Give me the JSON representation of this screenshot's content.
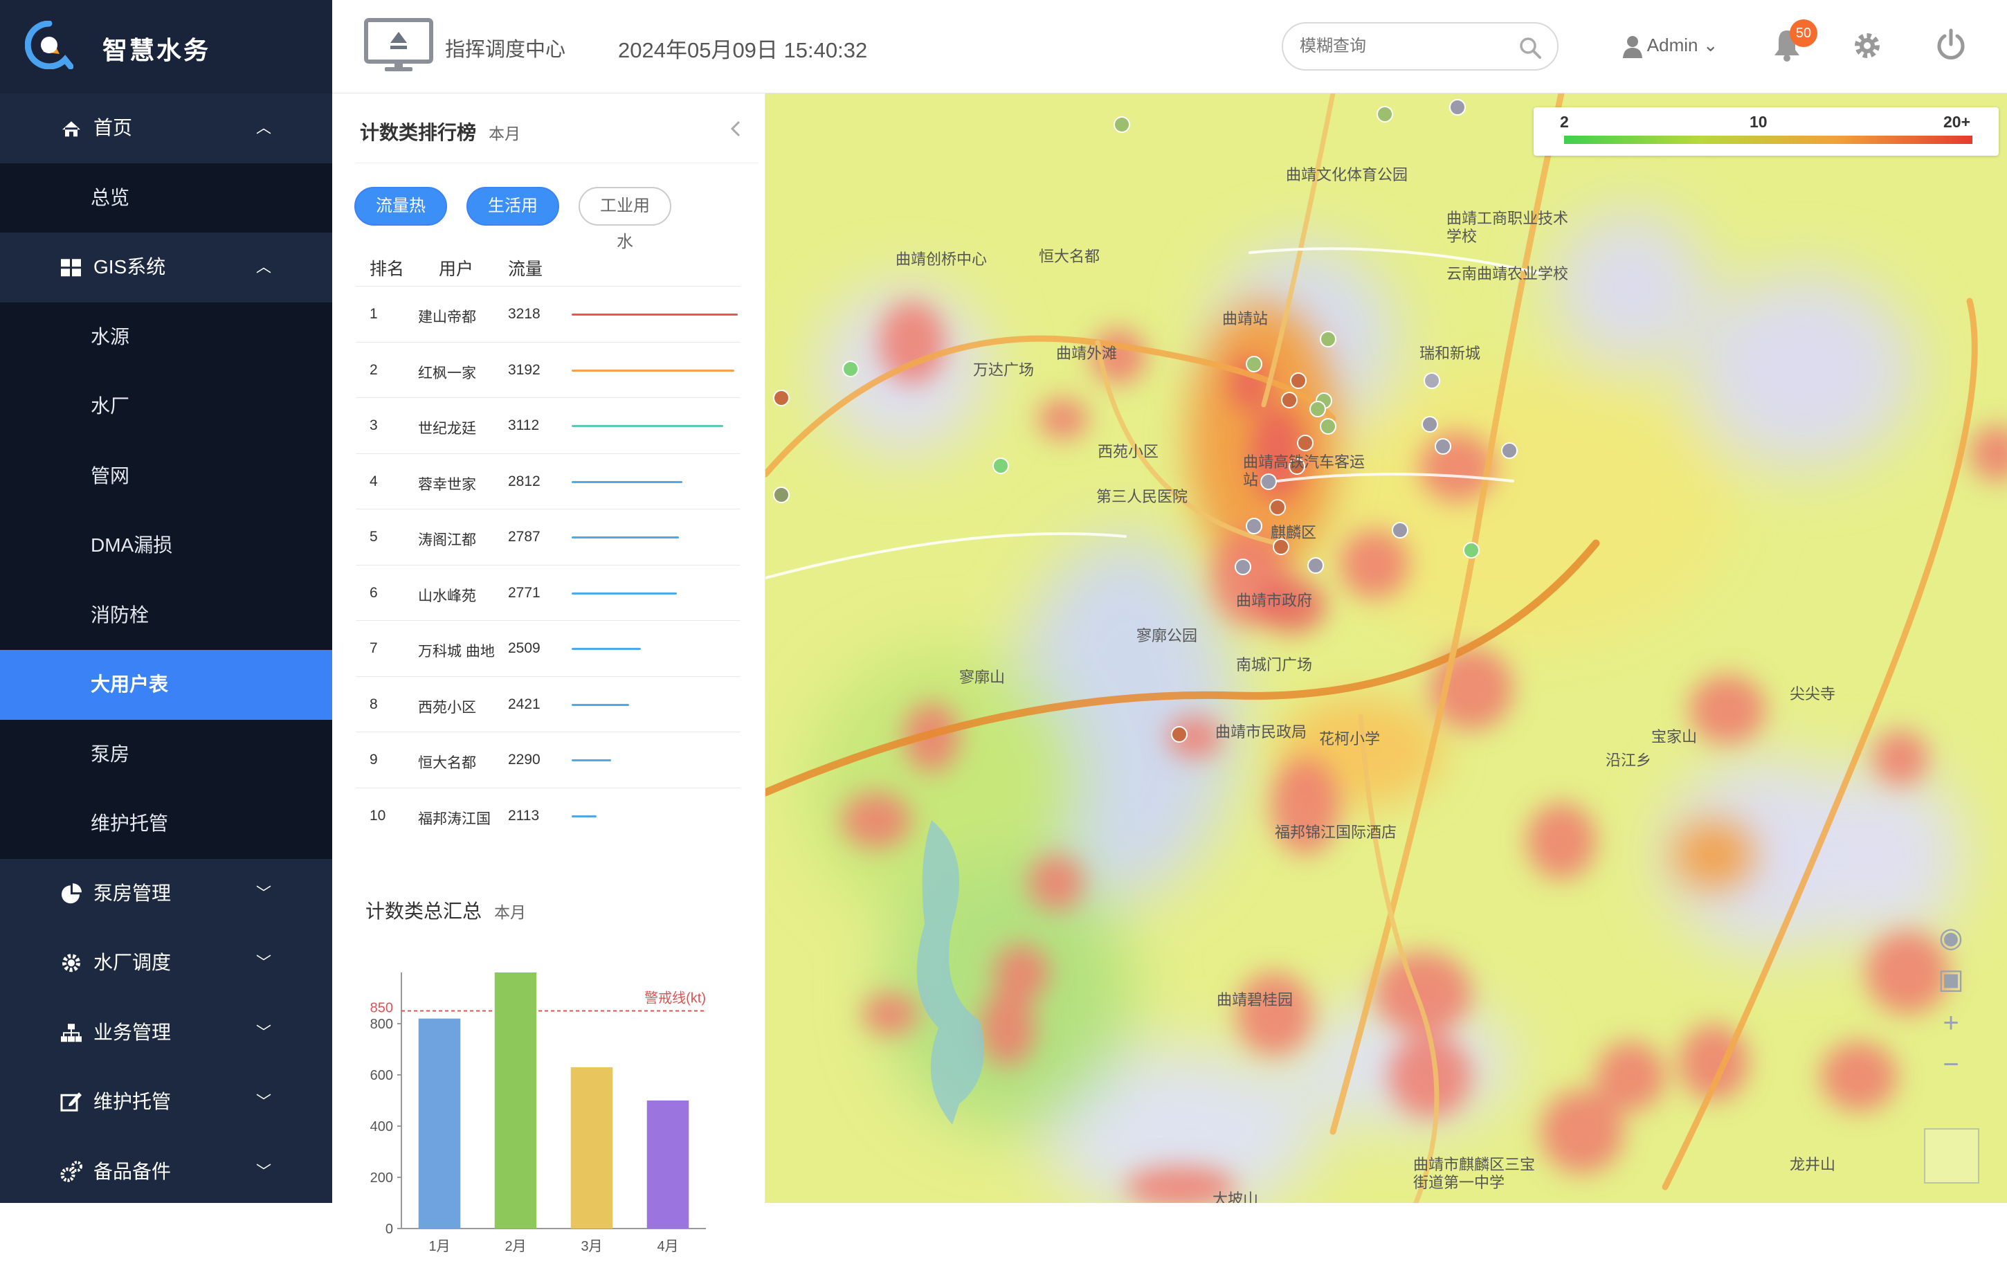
{
  "app": {
    "name": "智慧水务"
  },
  "sidebar": {
    "items": [
      {
        "label": "首页",
        "level": 1,
        "icon": "home-icon",
        "expanded": true
      },
      {
        "label": "总览",
        "level": 2
      },
      {
        "label": "GIS系统",
        "level": 1,
        "icon": "grid-icon",
        "expanded": true
      },
      {
        "label": "水源",
        "level": 2
      },
      {
        "label": "水厂",
        "level": 2
      },
      {
        "label": "管网",
        "level": 2
      },
      {
        "label": "DMA漏损",
        "level": 2
      },
      {
        "label": "消防栓",
        "level": 2
      },
      {
        "label": "大用户表",
        "level": 2,
        "active": true
      },
      {
        "label": "泵房",
        "level": 2
      },
      {
        "label": "维护托管",
        "level": 2
      },
      {
        "label": "泵房管理",
        "level": 1,
        "icon": "pie-chart-icon",
        "expanded": false
      },
      {
        "label": "水厂调度",
        "level": 1,
        "icon": "gear-icon",
        "expanded": false
      },
      {
        "label": "业务管理",
        "level": 1,
        "icon": "sitemap-icon",
        "expanded": false
      },
      {
        "label": "维护托管",
        "level": 1,
        "icon": "edit-icon",
        "expanded": false
      },
      {
        "label": "备品备件",
        "level": 1,
        "icon": "gears-icon",
        "expanded": false
      }
    ]
  },
  "header": {
    "title": "指挥调度中心",
    "datetime": "2024年05月09日 15:40:32",
    "search_placeholder": "模糊查询",
    "user": "Admin",
    "notifications": "50"
  },
  "ranking": {
    "title": "计数类排行榜",
    "period": "本月",
    "filters": [
      {
        "label": "流量热力",
        "active": true
      },
      {
        "label": "生活用水",
        "active": true
      },
      {
        "label": "工业用水",
        "active": false
      }
    ],
    "columns": [
      "排名",
      "用户",
      "流量"
    ],
    "rows": [
      {
        "rank": "1",
        "user": "建山帝都",
        "flow": "3218",
        "value": 3218,
        "color": "#ef5350"
      },
      {
        "rank": "2",
        "user": "红枫一家",
        "flow": "3192",
        "value": 3192,
        "color": "#f5a04a"
      },
      {
        "rank": "3",
        "user": "世纪龙廷",
        "flow": "3112",
        "value": 3112,
        "color": "#5cc9b5"
      },
      {
        "rank": "4",
        "user": "蓉幸世家",
        "flow": "2812",
        "value": 2812,
        "color": "#4fa9e8"
      },
      {
        "rank": "5",
        "user": "涛阁江都",
        "flow": "2787",
        "value": 2787,
        "color": "#4fa9e8"
      },
      {
        "rank": "6",
        "user": "山水峰苑",
        "flow": "2771",
        "value": 2771,
        "color": "#4fa9e8"
      },
      {
        "rank": "7",
        "user": "万科城 曲地",
        "flow": "2509",
        "value": 2509,
        "color": "#4fa9e8"
      },
      {
        "rank": "8",
        "user": "西苑小区",
        "flow": "2421",
        "value": 2421,
        "color": "#4fa9e8"
      },
      {
        "rank": "9",
        "user": "恒大名都",
        "flow": "2290",
        "value": 2290,
        "color": "#4fa9e8"
      },
      {
        "rank": "10",
        "user": "福邦涛江国",
        "flow": "2113",
        "value": 2113,
        "color": "#4fa9e8"
      }
    ]
  },
  "summary": {
    "title": "计数类总汇总",
    "period": "本月"
  },
  "chart_data": {
    "type": "bar",
    "categories": [
      "1月",
      "2月",
      "3月",
      "4月"
    ],
    "values": [
      820,
      1000,
      630,
      500
    ],
    "colors": [
      "#6fa3e0",
      "#8cc85a",
      "#e8c55d",
      "#9b74e0"
    ],
    "ylim": [
      0,
      1000
    ],
    "yticks": [
      "0",
      "200",
      "400",
      "600",
      "800"
    ],
    "threshold": {
      "value": 850,
      "label": "警戒线(kt)",
      "tick": "850"
    }
  },
  "legend": {
    "min": "2",
    "mid": "10",
    "max": "20+"
  },
  "map_labels": [
    "曲靖文化体育公园",
    "曲靖工商职业技术学校",
    "云南曲靖农业学校",
    "曲靖创桥中心",
    "恒大名都",
    "曲靖站",
    "瑞和新城",
    "万达广场",
    "曲靖外滩",
    "西苑小区",
    "曲靖高铁汽车客运站",
    "第三人民医院",
    "曲靖市政府",
    "寥廓公园",
    "南城门广场",
    "寥廓山",
    "曲靖市民政局",
    "花柯小学",
    "福邦锦江国际酒店",
    "曲靖碧桂园",
    "大坡山",
    "曲靖市麒麟区三宝街道第一中学",
    "龙井山",
    "麒麟区",
    "尖尖寺",
    "宝家山",
    "沿江乡"
  ]
}
